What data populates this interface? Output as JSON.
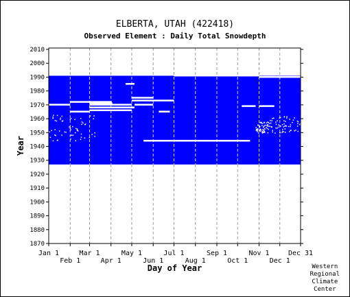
{
  "chart_data": {
    "type": "heatmap",
    "title": "ELBERTA, UTAH   (422418)",
    "subtitle": "Observed Element : Daily Total Snowdepth",
    "xlabel": "Day of Year",
    "ylabel": "Year",
    "xlim": [
      1,
      365
    ],
    "ylim": [
      1870,
      2011
    ],
    "x_ticks_top_row": [
      {
        "day": 1,
        "label": "Jan 1"
      },
      {
        "day": 60,
        "label": "Mar 1"
      },
      {
        "day": 121,
        "label": "May 1"
      },
      {
        "day": 182,
        "label": "Jul 1"
      },
      {
        "day": 244,
        "label": "Sep 1"
      },
      {
        "day": 305,
        "label": "Nov 1"
      },
      {
        "day": 365,
        "label": "Dec 31"
      }
    ],
    "x_ticks_bottom_row": [
      {
        "day": 32,
        "label": "Feb 1"
      },
      {
        "day": 91,
        "label": "Apr 1"
      },
      {
        "day": 152,
        "label": "Jun 1"
      },
      {
        "day": 213,
        "label": "Aug 1"
      },
      {
        "day": 274,
        "label": "Oct 1"
      },
      {
        "day": 335,
        "label": "Dec 1"
      }
    ],
    "y_ticks": [
      1870,
      1880,
      1890,
      1900,
      1910,
      1920,
      1930,
      1940,
      1950,
      1960,
      1970,
      1980,
      1990,
      2000,
      2010
    ],
    "observed_range": {
      "year_start": 1927,
      "year_end": 1991,
      "color": "#0000ff"
    },
    "missing_segments": [
      {
        "year": 1944,
        "day_start": 138,
        "day_end": 292
      },
      {
        "year": 1965,
        "day_start": 32,
        "day_end": 60
      },
      {
        "year": 1965,
        "day_start": 160,
        "day_end": 176
      },
      {
        "year": 1966,
        "day_start": 60,
        "day_end": 121
      },
      {
        "year": 1968,
        "day_start": 60,
        "day_end": 125
      },
      {
        "year": 1969,
        "day_start": 280,
        "day_end": 300
      },
      {
        "year": 1969,
        "day_start": 305,
        "day_end": 327
      },
      {
        "year": 1970,
        "day_start": 1,
        "day_end": 32
      },
      {
        "year": 1970,
        "day_start": 60,
        "day_end": 121
      },
      {
        "year": 1970,
        "day_start": 125,
        "day_end": 152
      },
      {
        "year": 1971,
        "day_start": 60,
        "day_end": 93
      },
      {
        "year": 1972,
        "day_start": 32,
        "day_end": 60
      },
      {
        "year": 1972,
        "day_start": 60,
        "day_end": 92
      },
      {
        "year": 1973,
        "day_start": 121,
        "day_end": 182
      },
      {
        "year": 1975,
        "day_start": 121,
        "day_end": 152
      },
      {
        "year": 1985,
        "day_start": 112,
        "day_end": 125
      },
      {
        "year": 1991,
        "day_start": 182,
        "day_end": 244
      },
      {
        "year": 1991,
        "day_start": 244,
        "day_end": 305
      },
      {
        "year": 1990,
        "day_start": 305,
        "day_end": 365
      }
    ],
    "grid": true,
    "credit": [
      "Western",
      "Regional",
      "Climate",
      "Center"
    ]
  }
}
